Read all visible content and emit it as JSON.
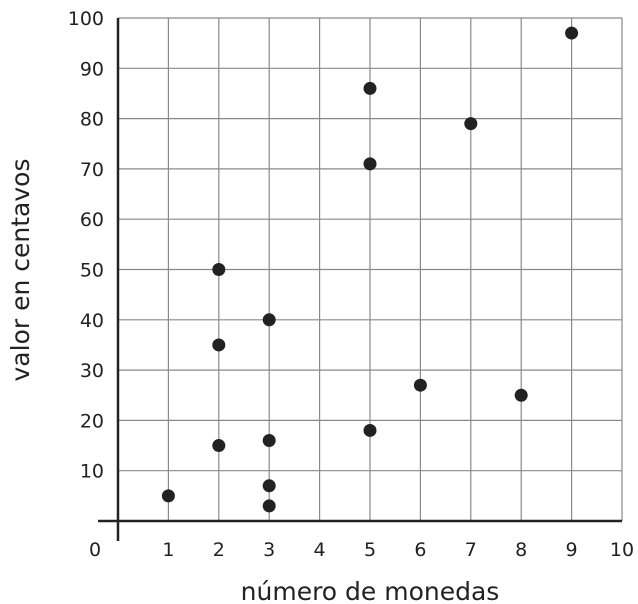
{
  "chart_data": {
    "type": "scatter",
    "xlabel": "número de monedas",
    "ylabel": "valor en centavos",
    "xlim": [
      0,
      10
    ],
    "ylim": [
      0,
      100
    ],
    "x_ticks": [
      "1",
      "2",
      "3",
      "4",
      "5",
      "6",
      "7",
      "8",
      "9",
      "10"
    ],
    "y_ticks": [
      "10",
      "20",
      "30",
      "40",
      "50",
      "60",
      "70",
      "80",
      "90",
      "100"
    ],
    "origin_label": "0",
    "grid": true,
    "point_color": "#222222",
    "points": [
      {
        "x": 1,
        "y": 5
      },
      {
        "x": 2,
        "y": 15
      },
      {
        "x": 2,
        "y": 35
      },
      {
        "x": 2,
        "y": 50
      },
      {
        "x": 3,
        "y": 3
      },
      {
        "x": 3,
        "y": 7
      },
      {
        "x": 3,
        "y": 16
      },
      {
        "x": 3,
        "y": 40
      },
      {
        "x": 5,
        "y": 18
      },
      {
        "x": 5,
        "y": 71
      },
      {
        "x": 5,
        "y": 86
      },
      {
        "x": 6,
        "y": 27
      },
      {
        "x": 7,
        "y": 79
      },
      {
        "x": 8,
        "y": 25
      },
      {
        "x": 9,
        "y": 97
      }
    ]
  }
}
